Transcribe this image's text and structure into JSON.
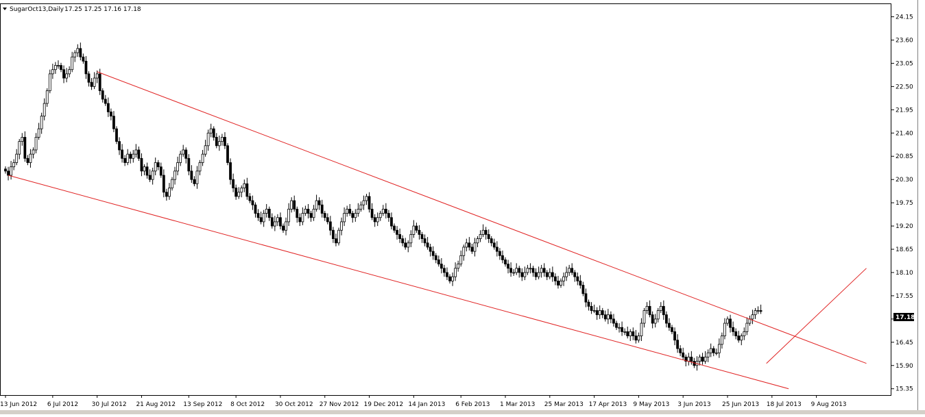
{
  "header": {
    "symbol": "SugarOct13,Daily",
    "ohlc": "17.25 17.25 17.16 17.18"
  },
  "colors": {
    "bull_body": "#ffffff",
    "bear_body": "#000000",
    "candle_outline": "#000000",
    "trendline": "#e02020",
    "frame": "#000000",
    "price_badge_bg": "#000000",
    "price_badge_text": "#ffffff"
  },
  "current_price_label": "17.18",
  "chart_data": {
    "type": "candlestick",
    "title": "SugarOct13,Daily",
    "ylim": [
      15.2,
      24.45
    ],
    "y_ticks": [
      "24.15",
      "23.60",
      "23.05",
      "22.50",
      "21.95",
      "21.40",
      "20.85",
      "20.30",
      "19.75",
      "19.20",
      "18.65",
      "18.10",
      "17.55",
      "17.00",
      "16.45",
      "15.90",
      "15.35"
    ],
    "x_ticks": [
      {
        "label": "13 Jun 2012",
        "index": 0
      },
      {
        "label": "6 Jul 2012",
        "index": 17
      },
      {
        "label": "30 Jul 2012",
        "index": 33
      },
      {
        "label": "21 Aug 2012",
        "index": 49
      },
      {
        "label": "13 Sep 2012",
        "index": 66
      },
      {
        "label": "8 Oct 2012",
        "index": 83
      },
      {
        "label": "30 Oct 2012",
        "index": 99
      },
      {
        "label": "27 Nov 2012",
        "index": 115
      },
      {
        "label": "19 Dec 2012",
        "index": 131
      },
      {
        "label": "14 Jan 2013",
        "index": 147
      },
      {
        "label": "6 Feb 2013",
        "index": 164
      },
      {
        "label": "1 Mar 2013",
        "index": 180
      },
      {
        "label": "25 Mar 2013",
        "index": 196
      },
      {
        "label": "17 Apr 2013",
        "index": 212
      },
      {
        "label": "9 May 2013",
        "index": 228
      },
      {
        "label": "3 Jun 2013",
        "index": 244
      },
      {
        "label": "25 Jun 2013",
        "index": 260
      },
      {
        "label": "18 Jul 2013",
        "index": 276
      },
      {
        "label": "9 Aug 2013",
        "index": 292
      }
    ],
    "closes": [
      20.5,
      20.4,
      20.6,
      20.7,
      20.9,
      21.2,
      21.3,
      20.8,
      20.7,
      20.9,
      21.0,
      21.3,
      21.5,
      21.8,
      22.1,
      22.4,
      22.8,
      22.9,
      23.0,
      23.0,
      22.9,
      22.7,
      22.8,
      22.9,
      23.2,
      23.3,
      23.4,
      23.2,
      23.1,
      22.8,
      22.6,
      22.5,
      22.7,
      22.8,
      22.4,
      22.2,
      22.1,
      21.9,
      21.8,
      21.5,
      21.2,
      21.0,
      20.8,
      20.7,
      20.9,
      20.8,
      20.9,
      21.0,
      20.8,
      20.5,
      20.6,
      20.4,
      20.3,
      20.5,
      20.7,
      20.6,
      20.4,
      20.0,
      19.9,
      20.1,
      20.3,
      20.5,
      20.7,
      20.9,
      21.0,
      20.8,
      20.5,
      20.3,
      20.2,
      20.5,
      20.7,
      20.9,
      21.1,
      21.4,
      21.5,
      21.3,
      21.1,
      21.2,
      21.3,
      21.1,
      20.7,
      20.3,
      20.1,
      19.9,
      20.0,
      20.1,
      20.2,
      19.9,
      19.8,
      19.7,
      19.5,
      19.4,
      19.3,
      19.5,
      19.6,
      19.4,
      19.2,
      19.3,
      19.4,
      19.2,
      19.1,
      19.3,
      19.6,
      19.8,
      19.6,
      19.4,
      19.3,
      19.5,
      19.6,
      19.5,
      19.4,
      19.6,
      19.8,
      19.7,
      19.5,
      19.4,
      19.3,
      19.1,
      18.9,
      18.8,
      19.1,
      19.3,
      19.5,
      19.6,
      19.5,
      19.4,
      19.5,
      19.6,
      19.7,
      19.8,
      19.9,
      19.6,
      19.4,
      19.3,
      19.4,
      19.5,
      19.6,
      19.5,
      19.4,
      19.2,
      19.1,
      19.0,
      18.9,
      18.8,
      18.7,
      18.8,
      19.0,
      19.2,
      19.1,
      19.0,
      18.9,
      18.8,
      18.7,
      18.6,
      18.5,
      18.4,
      18.3,
      18.2,
      18.1,
      18.0,
      17.9,
      18.0,
      18.2,
      18.3,
      18.5,
      18.7,
      18.8,
      18.7,
      18.6,
      18.8,
      18.9,
      19.0,
      19.1,
      19.0,
      18.9,
      18.8,
      18.7,
      18.6,
      18.5,
      18.4,
      18.3,
      18.2,
      18.1,
      18.1,
      18.2,
      18.1,
      18.0,
      18.1,
      18.2,
      18.2,
      18.1,
      18.0,
      18.1,
      18.2,
      18.1,
      18.0,
      18.1,
      18.0,
      17.9,
      17.8,
      17.9,
      18.0,
      18.1,
      18.2,
      18.1,
      18.0,
      17.9,
      17.8,
      17.6,
      17.4,
      17.3,
      17.2,
      17.2,
      17.1,
      17.2,
      17.1,
      17.0,
      17.1,
      17.0,
      16.9,
      16.8,
      16.8,
      16.7,
      16.7,
      16.6,
      16.7,
      16.6,
      16.5,
      16.6,
      16.9,
      17.2,
      17.3,
      17.1,
      16.9,
      17.0,
      17.2,
      17.3,
      17.1,
      16.9,
      16.8,
      16.7,
      16.5,
      16.3,
      16.2,
      16.1,
      16.0,
      16.1,
      16.0,
      15.9,
      16.0,
      16.1,
      16.0,
      16.1,
      16.2,
      16.3,
      16.2,
      16.2,
      16.4,
      16.6,
      16.9,
      17.0,
      16.8,
      16.7,
      16.6,
      16.5,
      16.6,
      16.7,
      16.9,
      17.0,
      17.1,
      17.2,
      17.2,
      17.18
    ],
    "trendlines": [
      {
        "name": "upper",
        "from": {
          "index": 33,
          "price": 22.85
        },
        "to": {
          "index": 310,
          "price": 15.95
        }
      },
      {
        "name": "lower",
        "from": {
          "index": 1,
          "price": 20.4
        },
        "to": {
          "index": 282,
          "price": 15.35
        }
      },
      {
        "name": "breakout",
        "from": {
          "index": 274,
          "price": 15.95
        },
        "to": {
          "index": 310,
          "price": 18.2
        }
      }
    ]
  }
}
